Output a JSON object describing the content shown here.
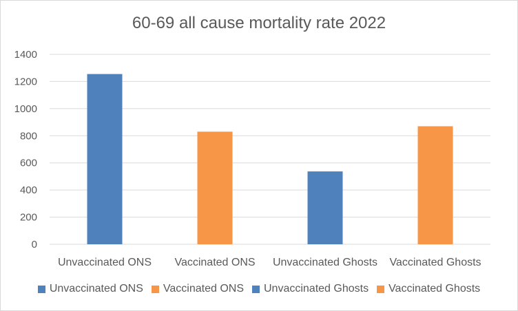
{
  "chart_data": {
    "type": "bar",
    "title": "60-69 all cause mortality rate 2022",
    "categories": [
      "Unvaccinated ONS",
      "Vaccinated ONS",
      "Unvaccinated Ghosts",
      "Vaccinated Ghosts"
    ],
    "values": [
      1255,
      830,
      537,
      870
    ],
    "colors": [
      "#4f81bd",
      "#f79646",
      "#4f81bd",
      "#f79646"
    ],
    "ylim": [
      0,
      1400
    ],
    "yticks": [
      0,
      200,
      400,
      600,
      800,
      1000,
      1200,
      1400
    ],
    "grid": true,
    "legend_placement": "bottom",
    "legend": [
      {
        "label": "Unvaccinated ONS",
        "color": "#4f81bd"
      },
      {
        "label": "Vaccinated ONS",
        "color": "#f79646"
      },
      {
        "label": "Unvaccinated Ghosts",
        "color": "#4f81bd"
      },
      {
        "label": "Vaccinated Ghosts",
        "color": "#f79646"
      }
    ]
  }
}
